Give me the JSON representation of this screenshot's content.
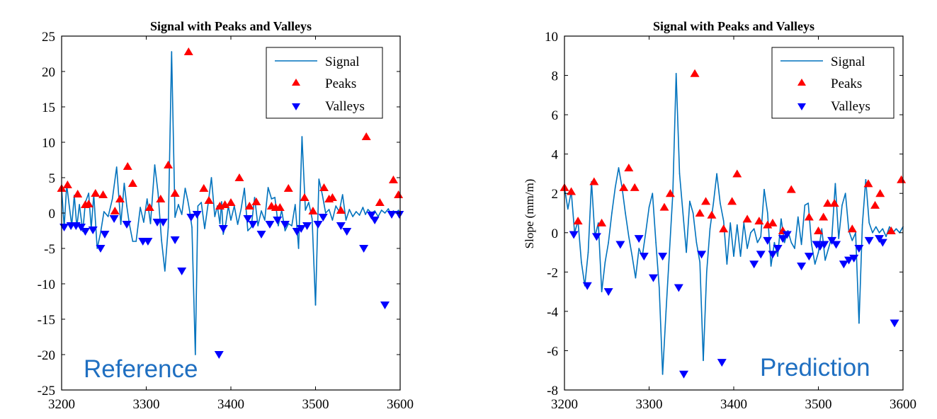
{
  "chart_data": [
    {
      "type": "line",
      "title": "Signal with Peaks and Valleys",
      "xlabel": "",
      "ylabel": "",
      "xlim": [
        3200,
        3600
      ],
      "ylim": [
        -25,
        25
      ],
      "xticks": [
        "3200",
        "3300",
        "3400",
        "3500",
        "3600"
      ],
      "yticks": [
        "25",
        "20",
        "15",
        "10",
        "5",
        "0",
        "-5",
        "-10",
        "-15",
        "-20",
        "-25"
      ],
      "xtick_values": [
        3200,
        3300,
        3400,
        3500,
        3600
      ],
      "ytick_values": [
        25,
        20,
        15,
        10,
        5,
        0,
        -5,
        -10,
        -15,
        -20,
        -25
      ],
      "grid": false,
      "legend_position": "top-right",
      "annotation": "Reference",
      "series": [
        {
          "name": "Signal",
          "kind": "line",
          "color": "#0072bd",
          "x": [
            3200,
            3203,
            3206,
            3209,
            3212,
            3215,
            3218,
            3221,
            3225,
            3228,
            3232,
            3235,
            3238,
            3242,
            3246,
            3250,
            3255,
            3260,
            3265,
            3270,
            3274,
            3277,
            3280,
            3284,
            3288,
            3293,
            3297,
            3301,
            3305,
            3310,
            3314,
            3318,
            3322,
            3326,
            3330,
            3334,
            3338,
            3342,
            3346,
            3349,
            3351,
            3354,
            3358,
            3361,
            3365,
            3369,
            3373,
            3377,
            3381,
            3384,
            3387,
            3389,
            3391,
            3394,
            3397,
            3400,
            3404,
            3408,
            3412,
            3416,
            3420,
            3424,
            3428,
            3432,
            3436,
            3440,
            3444,
            3448,
            3452,
            3456,
            3460,
            3464,
            3468,
            3472,
            3476,
            3480,
            3484,
            3488,
            3492,
            3496,
            3500,
            3504,
            3508,
            3512,
            3516,
            3520,
            3524,
            3528,
            3532,
            3536,
            3540,
            3544,
            3548,
            3552,
            3556,
            3559,
            3562,
            3566,
            3570,
            3574,
            3578,
            3582,
            3586,
            3589,
            3592,
            3595,
            3598,
            3600
          ],
          "y": [
            3.5,
            -2,
            4,
            1,
            -1.8,
            2.5,
            -2,
            1.2,
            -2.6,
            1.5,
            2.8,
            -2.2,
            2.6,
            -5,
            -2.8,
            0.2,
            -0.5,
            2,
            6.5,
            -1.6,
            4.2,
            1,
            -1.5,
            -4,
            -4,
            0.8,
            -1.3,
            2,
            -1.5,
            6.8,
            2.8,
            -3.8,
            -8.2,
            -2,
            22.8,
            -0.6,
            1.2,
            -0.2,
            3.5,
            1.8,
            0.5,
            -2,
            -20,
            1,
            1.5,
            -2.2,
            1.2,
            5,
            -0.5,
            1,
            -1.5,
            1.6,
            -3,
            -1.5,
            1,
            -1,
            1,
            -1.6,
            0.5,
            3.5,
            -2.5,
            -2,
            2.2,
            -1.8,
            0.3,
            -1,
            3.6,
            2,
            2.2,
            -1.8,
            0.4,
            -2.5,
            -1.5,
            -1.8,
            1.2,
            -5,
            10.8,
            0.4,
            1.5,
            -0.8,
            -13,
            4.8,
            2.6,
            0,
            0.5,
            -1,
            1,
            0.2,
            2.6,
            -1,
            0.5,
            -0.5,
            0.2,
            -0.3,
            0.8,
            -0.2,
            0.5,
            0,
            0.3,
            -0.5,
            0.4,
            0,
            0.6,
            -0.2,
            0.3,
            0,
            0.4,
            0
          ]
        },
        {
          "name": "Peaks",
          "kind": "marker-up",
          "color": "#ff0000",
          "x": [
            3200,
            3207,
            3219,
            3228,
            3232,
            3240,
            3249,
            3263,
            3269,
            3278,
            3284,
            3304,
            3317,
            3326,
            3334,
            3350,
            3368,
            3374,
            3387,
            3393,
            3400,
            3410,
            3422,
            3430,
            3448,
            3453,
            3458,
            3468,
            3487,
            3497,
            3510,
            3516,
            3520,
            3530,
            3560,
            3576,
            3592,
            3598
          ],
          "y": [
            3.5,
            4,
            2.7,
            1.2,
            1.3,
            2.8,
            2.6,
            0.3,
            2,
            6.6,
            4.2,
            0.8,
            2,
            6.8,
            2.8,
            22.8,
            3.5,
            1.8,
            1,
            1.2,
            1.5,
            5,
            1,
            1.6,
            1,
            0.8,
            0.8,
            3.5,
            2.2,
            0.3,
            3.6,
            2,
            2.2,
            0.4,
            10.8,
            1.5,
            4.7,
            2.6
          ]
        },
        {
          "name": "Valleys",
          "kind": "marker-down",
          "color": "#0000ff",
          "x": [
            3203,
            3211,
            3217,
            3223,
            3228,
            3237,
            3246,
            3251,
            3262,
            3277,
            3296,
            3302,
            3313,
            3320,
            3334,
            3342,
            3353,
            3360,
            3386,
            3391,
            3420,
            3426,
            3436,
            3446,
            3455,
            3464,
            3478,
            3483,
            3490,
            3503,
            3509,
            3530,
            3537,
            3557,
            3566,
            3570,
            3582,
            3590,
            3599
          ],
          "y": [
            -2,
            -1.8,
            -1.8,
            -2,
            -2.6,
            -2.4,
            -5,
            -3,
            -0.8,
            -1.6,
            -4,
            -4,
            -1.3,
            -1.3,
            -3.8,
            -8.2,
            -0.6,
            -0.2,
            -20,
            -2.2,
            -0.8,
            -1.6,
            -3,
            -1.6,
            -1,
            -1.6,
            -2.6,
            -2.2,
            -1.8,
            -1.6,
            -0.6,
            -1.8,
            -2.6,
            -5,
            -0.3,
            -1,
            -13,
            -0.2,
            -0.2
          ]
        }
      ]
    },
    {
      "type": "line",
      "title": "Signal with Peaks and Valleys",
      "xlabel": "",
      "ylabel": "Slope (mm/m)",
      "xlim": [
        3200,
        3600
      ],
      "ylim": [
        -8,
        10
      ],
      "xticks": [
        "3200",
        "3300",
        "3400",
        "3500",
        "3600"
      ],
      "yticks": [
        "10",
        "8",
        "6",
        "4",
        "2",
        "0",
        "-2",
        "-4",
        "-6",
        "-8"
      ],
      "xtick_values": [
        3200,
        3300,
        3400,
        3500,
        3600
      ],
      "ytick_values": [
        10,
        8,
        6,
        4,
        2,
        0,
        -2,
        -4,
        -6,
        -8
      ],
      "grid": false,
      "legend_position": "top-right",
      "annotation": "Prediction",
      "series": [
        {
          "name": "Signal",
          "kind": "line",
          "color": "#0072bd",
          "x": [
            3200,
            3204,
            3208,
            3212,
            3216,
            3220,
            3224,
            3228,
            3232,
            3236,
            3240,
            3244,
            3248,
            3252,
            3256,
            3260,
            3264,
            3268,
            3272,
            3276,
            3280,
            3284,
            3288,
            3292,
            3296,
            3300,
            3304,
            3308,
            3312,
            3316,
            3320,
            3324,
            3328,
            3332,
            3336,
            3340,
            3344,
            3348,
            3352,
            3356,
            3360,
            3364,
            3368,
            3372,
            3376,
            3380,
            3384,
            3388,
            3392,
            3396,
            3400,
            3404,
            3408,
            3412,
            3416,
            3420,
            3424,
            3428,
            3432,
            3436,
            3440,
            3444,
            3448,
            3452,
            3456,
            3460,
            3464,
            3468,
            3472,
            3476,
            3480,
            3484,
            3488,
            3492,
            3496,
            3500,
            3504,
            3508,
            3512,
            3516,
            3520,
            3524,
            3528,
            3532,
            3536,
            3540,
            3544,
            3548,
            3552,
            3556,
            3560,
            3564,
            3568,
            3572,
            3576,
            3580,
            3584,
            3588,
            3592,
            3596,
            3600
          ],
          "y": [
            2.3,
            1.2,
            2.1,
            0,
            0.6,
            -1.5,
            -2.7,
            -1,
            2.6,
            -0.2,
            0.5,
            -3,
            -1.5,
            -0.5,
            1,
            2.3,
            3.3,
            2.3,
            1,
            -0.2,
            -1.2,
            -2.3,
            -0.8,
            -1.2,
            0,
            1.3,
            2,
            -0.5,
            -2.8,
            -7.2,
            -4,
            -1,
            2,
            8.1,
            3,
            1,
            -1,
            1.6,
            1,
            -0.5,
            -1.5,
            -6.5,
            -2,
            0.2,
            1.5,
            3,
            1.5,
            0.6,
            -1.6,
            0.5,
            -1.2,
            0.4,
            -1.2,
            0.5,
            -0.8,
            0,
            0.2,
            -0.5,
            -0.2,
            2.2,
            1,
            -1.7,
            -0.5,
            -1.2,
            0.7,
            -0.5,
            0.1,
            -0.5,
            -0.8,
            0.8,
            -0.6,
            1.4,
            1.5,
            -0.6,
            -1.6,
            -1,
            0.2,
            -1.4,
            -0.8,
            -0.2,
            2.5,
            -0.3,
            1.4,
            2,
            0.1,
            -0.4,
            0,
            -4.6,
            0.4,
            2.7,
            0.5,
            0,
            0.3,
            0,
            0.2,
            -0.2,
            0.3,
            0,
            0.2,
            0,
            0.3
          ]
        },
        {
          "name": "Peaks",
          "kind": "marker-up",
          "color": "#ff0000",
          "x": [
            3200,
            3208,
            3216,
            3235,
            3244,
            3270,
            3276,
            3283,
            3318,
            3325,
            3354,
            3360,
            3367,
            3374,
            3388,
            3398,
            3404,
            3416,
            3430,
            3440,
            3446,
            3458,
            3468,
            3489,
            3500,
            3506,
            3511,
            3519,
            3540,
            3559,
            3567,
            3573,
            3586,
            3598
          ],
          "y": [
            2.3,
            2.1,
            0.6,
            2.6,
            0.5,
            2.3,
            3.3,
            2.3,
            1.3,
            2,
            8.1,
            1,
            1.6,
            0.9,
            0.2,
            1.6,
            3,
            0.7,
            0.6,
            0.4,
            0.5,
            0.1,
            2.2,
            0.8,
            0.1,
            0.8,
            1.5,
            1.5,
            0.2,
            2.5,
            1.4,
            2,
            0.1,
            2.7
          ]
        },
        {
          "name": "Valleys",
          "kind": "marker-down",
          "color": "#0000ff",
          "x": [
            3211,
            3227,
            3238,
            3252,
            3266,
            3288,
            3294,
            3305,
            3316,
            3335,
            3341,
            3362,
            3386,
            3424,
            3432,
            3440,
            3446,
            3452,
            3458,
            3463,
            3480,
            3489,
            3498,
            3502,
            3507,
            3516,
            3521,
            3530,
            3536,
            3542,
            3548,
            3560,
            3572,
            3576,
            3590
          ],
          "y": [
            -0.1,
            -2.7,
            -0.2,
            -3,
            -0.6,
            -0.3,
            -1.2,
            -2.3,
            -1.2,
            -2.8,
            -7.2,
            -1.1,
            -6.6,
            -1.6,
            -1.1,
            -0.4,
            -1.1,
            -0.8,
            -0.3,
            -0.1,
            -1.7,
            -1.2,
            -0.6,
            -0.7,
            -0.6,
            -0.4,
            -0.6,
            -1.6,
            -1.4,
            -1.3,
            -0.8,
            -0.4,
            -0.3,
            -0.5,
            -4.6
          ]
        }
      ]
    }
  ]
}
